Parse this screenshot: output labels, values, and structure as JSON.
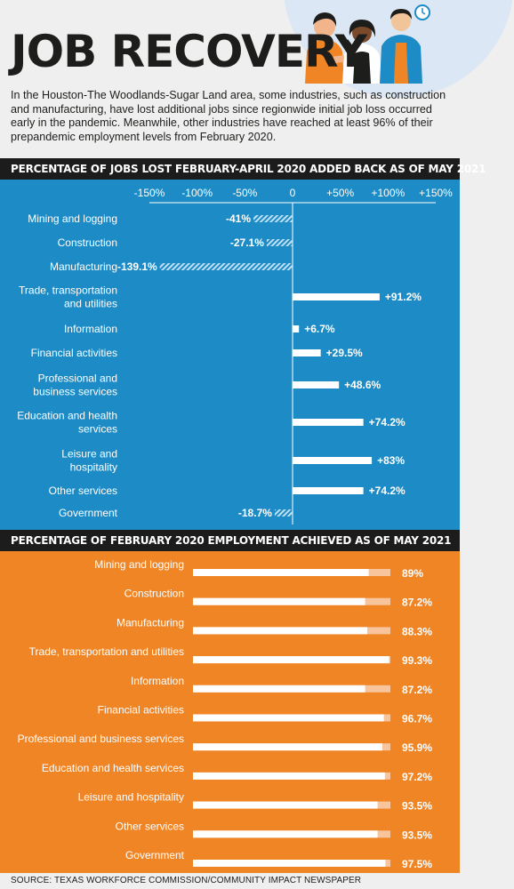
{
  "header": {
    "title": "JOB RECOVERY",
    "intro": "In the Houston-The Woodlands-Sugar Land area, some industries, such as construction and manufacturing, have lost additional jobs since regionwide initial job loss occurred early in the pandemic. Meanwhile, other industries have reached at least 96% of their prepandemic employment levels from February 2020."
  },
  "colors": {
    "blue_panel": "#1d8cc6",
    "orange_panel": "#f08526",
    "bar_positive": "#ffffff",
    "bar_negative_hatch": "#bfe0f5",
    "bar_track": "#f7c49b",
    "header_band": "#1c1c1c"
  },
  "icons": [
    "people-illustration",
    "clock-icon"
  ],
  "source": "SOURCE: TEXAS WORKFORCE COMMISSION/COMMUNITY IMPACT NEWSPAPER",
  "chart_data": [
    {
      "type": "bar",
      "title": "PERCENTAGE OF JOBS LOST FEBRUARY-APRIL 2020 ADDED BACK AS OF MAY 2021",
      "orientation": "horizontal",
      "tick_labels": [
        "-150%",
        "-100%",
        "-50%",
        "0",
        "+50%",
        "+100%",
        "+150%"
      ],
      "ticks": [
        -150,
        -100,
        -50,
        0,
        50,
        100,
        150
      ],
      "xlim": [
        -150,
        150
      ],
      "categories": [
        [
          "Mining and logging"
        ],
        [
          "Construction"
        ],
        [
          "Manufacturing"
        ],
        [
          "Trade, transportation",
          "and utilities"
        ],
        [
          "Information"
        ],
        [
          "Financial activities"
        ],
        [
          "Professional and",
          "business services"
        ],
        [
          "Education and health",
          "services"
        ],
        [
          "Leisure and",
          "hospitality"
        ],
        [
          "Other services"
        ],
        [
          "Government"
        ]
      ],
      "values": [
        -41,
        -27.1,
        -139.1,
        91.2,
        6.7,
        29.5,
        48.6,
        74.2,
        83,
        74.2,
        -18.7
      ],
      "value_labels": [
        "-41%",
        "-27.1%",
        "-139.1%",
        "+91.2%",
        "+6.7%",
        "+29.5%",
        "+48.6%",
        "+74.2%",
        "+83%",
        "+74.2%",
        "-18.7%"
      ]
    },
    {
      "type": "bar",
      "title": "PERCENTAGE OF FEBRUARY 2020 EMPLOYMENT ACHIEVED AS OF MAY 2021",
      "orientation": "horizontal",
      "xlim": [
        0,
        100
      ],
      "categories": [
        "Mining and logging",
        "Construction",
        "Manufacturing",
        "Trade, transportation and utilities",
        "Information",
        "Financial activities",
        "Professional and business services",
        "Education and health services",
        "Leisure and hospitality",
        "Other services",
        "Government"
      ],
      "values": [
        89,
        87.2,
        88.3,
        99.3,
        87.2,
        96.7,
        95.9,
        97.2,
        93.5,
        93.5,
        97.5
      ],
      "value_labels": [
        "89%",
        "87.2%",
        "88.3%",
        "99.3%",
        "87.2%",
        "96.7%",
        "95.9%",
        "97.2%",
        "93.5%",
        "93.5%",
        "97.5%"
      ]
    }
  ]
}
